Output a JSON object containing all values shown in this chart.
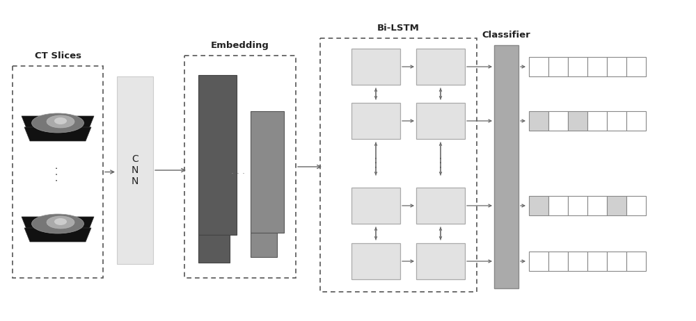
{
  "bg_color": "#ffffff",
  "ct_slices_label": "CT Slices",
  "cnn_label": "C\nN\nN",
  "embedding_label": "Embedding",
  "bilstm_label": "Bi-LSTM",
  "classifier_label": "Classifier",
  "output_rows": [
    [
      0,
      0,
      0,
      0,
      0,
      0
    ],
    [
      1,
      0,
      1,
      0,
      0,
      0
    ],
    [
      1,
      0,
      0,
      0,
      1,
      0
    ],
    [
      0,
      0,
      0,
      0,
      0,
      0
    ]
  ],
  "highlighted_cells": [
    [
      false,
      false,
      false,
      false,
      false,
      false
    ],
    [
      true,
      false,
      true,
      false,
      false,
      false
    ],
    [
      true,
      false,
      false,
      false,
      true,
      false
    ],
    [
      false,
      false,
      false,
      false,
      false,
      false
    ]
  ],
  "cell_highlight_color": "#d0d0d0",
  "cell_normal_color": "#ffffff",
  "box_light": "#e2e2e2",
  "bar_dark": "#5a5a5a",
  "bar_medium": "#8a8a8a",
  "classifier_color": "#aaaaaa",
  "arrow_color": "#666666",
  "dashed_border_color": "#555555",
  "font_color": "#222222",
  "cnn_bg": "#e6e6e6"
}
